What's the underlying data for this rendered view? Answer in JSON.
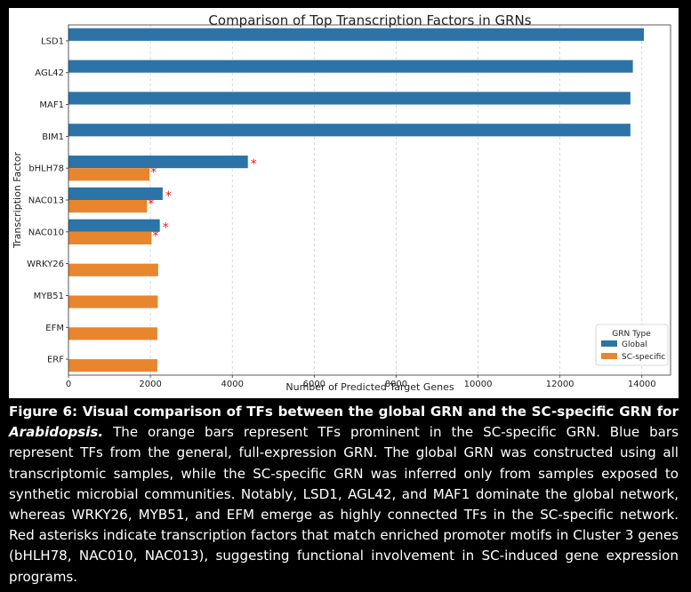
{
  "chart_data": {
    "type": "bar",
    "orientation": "horizontal",
    "title": "Comparison of Top Transcription Factors in GRNs",
    "xlabel": "Number of Predicted Target Genes",
    "ylabel": "Transcription Factor",
    "xlim": [
      0,
      14700
    ],
    "xticks": [
      0,
      2000,
      4000,
      6000,
      8000,
      10000,
      12000,
      14000
    ],
    "grid": "vertical-dashed",
    "categories": [
      "LSD1",
      "AGL42",
      "MAF1",
      "BIM1",
      "bHLH78",
      "NAC013",
      "NAC010",
      "WRKY26",
      "MYB51",
      "EFM",
      "ERF"
    ],
    "series": [
      {
        "name": "Global",
        "color": "#2c73a8",
        "values": [
          14050,
          13780,
          13720,
          13720,
          4380,
          2300,
          2230,
          null,
          null,
          null,
          null
        ]
      },
      {
        "name": "SC-specific",
        "color": "#e8862e",
        "values": [
          null,
          null,
          null,
          null,
          1980,
          1920,
          2030,
          2190,
          2180,
          2170,
          2170
        ]
      }
    ],
    "asterisks": {
      "symbol": "*",
      "color": "#e01e1e",
      "categories": [
        "bHLH78",
        "NAC013",
        "NAC010"
      ]
    },
    "legend": {
      "title": "GRN Type",
      "position": "lower-right"
    }
  },
  "caption": {
    "label": "Figure 6: Visual comparison of TFs between the global GRN and the SC-specific GRN for",
    "species": "Arabidopsis.",
    "text": "The orange bars represent TFs prominent in the SC-specific GRN. Blue bars represent TFs from the general, full-expression GRN. The global GRN was constructed using all transcriptomic samples, while the SC-specific GRN was inferred only from samples exposed to synthetic microbial communities. Notably, LSD1, AGL42, and MAF1 dominate the global network, whereas WRKY26, MYB51, and EFM emerge as highly connected TFs in the SC-specific network. Red asterisks indicate transcription factors that match enriched promoter motifs in Cluster 3 genes (bHLH78, NAC010, NAC013), suggesting functional involvement in SC-induced gene expression programs."
  }
}
